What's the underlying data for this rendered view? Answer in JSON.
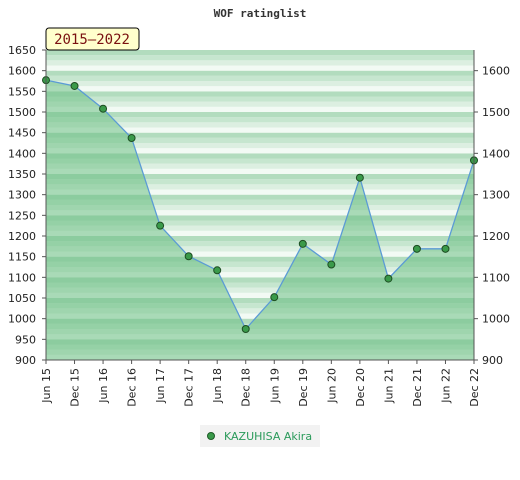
{
  "chart_data": {
    "type": "area",
    "title": "WOF ratinglist",
    "period_label": "2015—2022",
    "categories": [
      "Jun 15",
      "Dec 15",
      "Jun 16",
      "Dec 16",
      "Jun 17",
      "Dec 17",
      "Jun 18",
      "Dec 18",
      "Jun 19",
      "Dec 19",
      "Jun 20",
      "Dec 20",
      "Jun 21",
      "Dec 21",
      "Jun 22",
      "Dec 22"
    ],
    "series": [
      {
        "name": "KAZUHISA Akira",
        "values": [
          1577,
          1563,
          1508,
          1437,
          1225,
          1151,
          1117,
          975,
          1052,
          1181,
          1131,
          1341,
          1097,
          1169,
          1169,
          1383
        ]
      }
    ],
    "ylim": [
      900,
      1650
    ],
    "left_ticks": [
      900,
      950,
      1000,
      1050,
      1100,
      1150,
      1200,
      1250,
      1300,
      1350,
      1400,
      1450,
      1500,
      1550,
      1600,
      1650
    ],
    "right_ticks": [
      900,
      1000,
      1100,
      1200,
      1300,
      1400,
      1500,
      1600
    ],
    "legend_position": "bottom-center",
    "colors": {
      "line": "#5b9bd5",
      "marker": "#3a9a4a",
      "fill": "#6dbf85",
      "legend_text": "#2a9a5a",
      "badge_bg": "#ffffcc"
    }
  }
}
